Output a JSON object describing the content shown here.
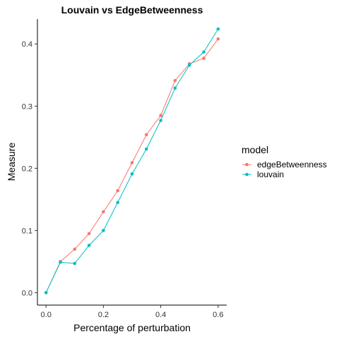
{
  "chart_data": {
    "type": "line",
    "title": "Louvain vs EdgeBetweenness",
    "xlabel": "Percentage of perturbation",
    "ylabel": "Measure",
    "xlim": [
      -0.03,
      0.63
    ],
    "ylim": [
      -0.02,
      0.44
    ],
    "x_ticks": [
      0.0,
      0.2,
      0.4,
      0.6
    ],
    "y_ticks": [
      0.0,
      0.1,
      0.2,
      0.3,
      0.4
    ],
    "x_tick_labels": [
      "0.0",
      "0.2",
      "0.4",
      "0.6"
    ],
    "y_tick_labels": [
      "0.0",
      "0.1",
      "0.2",
      "0.3",
      "0.4"
    ],
    "grid": false,
    "legend": {
      "title": "model",
      "position": "right"
    },
    "x": [
      0.0,
      0.05,
      0.1,
      0.15,
      0.2,
      0.25,
      0.3,
      0.35,
      0.4,
      0.45,
      0.5,
      0.55,
      0.6
    ],
    "series": [
      {
        "name": "edgeBetweenness",
        "color": "#F8766D",
        "values": [
          0.0,
          0.05,
          0.07,
          0.095,
          0.13,
          0.164,
          0.209,
          0.254,
          0.285,
          0.341,
          0.368,
          0.377,
          0.408
        ]
      },
      {
        "name": "louvain",
        "color": "#00BFC4",
        "values": [
          0.0,
          0.049,
          0.047,
          0.076,
          0.1,
          0.145,
          0.191,
          0.231,
          0.277,
          0.329,
          0.366,
          0.387,
          0.424
        ]
      }
    ]
  }
}
